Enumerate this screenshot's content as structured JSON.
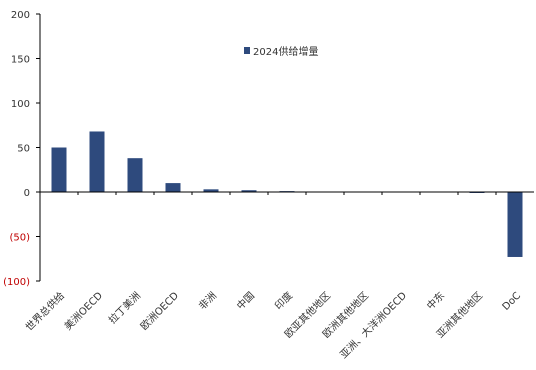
{
  "chart_data": {
    "type": "bar",
    "categories": [
      "世界总供给",
      "美洲OECD",
      "拉丁美洲",
      "欧洲OECD",
      "非洲",
      "中国",
      "印度",
      "欧亚其他地区",
      "欧洲其他地区",
      "亚洲、大洋洲OECD",
      "中东",
      "亚洲其他地区",
      "DoC"
    ],
    "series": [
      {
        "name": "2024供给增量",
        "values": [
          50,
          68,
          38,
          10,
          3,
          2,
          1,
          0,
          0,
          0,
          0,
          -1,
          -73
        ]
      }
    ],
    "ylim": [
      -100,
      200
    ],
    "yticks": [
      -100,
      -50,
      0,
      50,
      100,
      150,
      200
    ],
    "ytick_labels": [
      "(100)",
      "(50)",
      "0",
      "50",
      "100",
      "150",
      "200"
    ],
    "legend_position": "top-center",
    "grid": false,
    "colors": {
      "bar": "#2e4a7d",
      "negative_tick": "#c00000",
      "tick": "#333333",
      "axis": "#000000"
    }
  }
}
